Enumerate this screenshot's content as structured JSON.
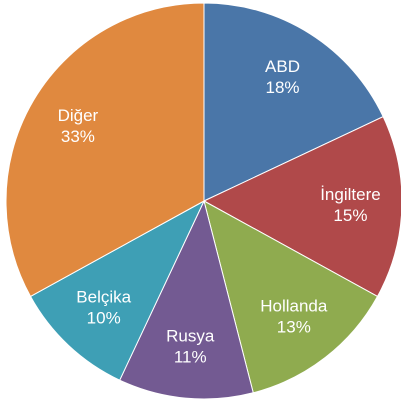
{
  "chart_data": {
    "type": "pie",
    "categories": [
      "ABD",
      "İngiltere",
      "Hollanda",
      "Rusya",
      "Belçika",
      "Diğer"
    ],
    "values": [
      18,
      15,
      13,
      11,
      10,
      33
    ],
    "value_labels": [
      "18%",
      "15%",
      "13%",
      "11%",
      "10%",
      "33%"
    ],
    "colors": [
      "#4a76a8",
      "#b0494a",
      "#8fab4f",
      "#735a92",
      "#3e9fb5",
      "#e0893f"
    ]
  }
}
